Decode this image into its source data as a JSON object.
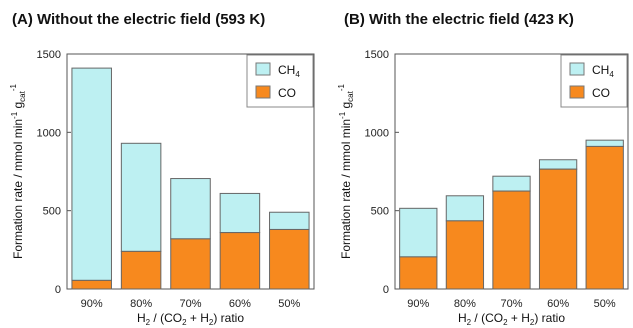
{
  "chart_data": [
    {
      "type": "bar",
      "stacked": true,
      "title": "(A) Without the electric field (593 K)",
      "categories": [
        "90%",
        "80%",
        "70%",
        "60%",
        "50%"
      ],
      "series": [
        {
          "name": "CO",
          "color": "#f7891e",
          "values": [
            55,
            240,
            320,
            360,
            380
          ]
        },
        {
          "name": "CH4",
          "color": "#bdf0f2",
          "values": [
            1355,
            690,
            385,
            250,
            110
          ]
        }
      ],
      "ylim": [
        0,
        1500
      ],
      "yticks": [
        "0",
        "500",
        "1000",
        "1500"
      ],
      "xlabel": "H2 / (CO2 + H2) ratio",
      "ylabel": "Formation rate / mmol min-1 gcat-1",
      "legend_position": "top-right"
    },
    {
      "type": "bar",
      "stacked": true,
      "title": "(B) With the electric field (423 K)",
      "categories": [
        "90%",
        "80%",
        "70%",
        "60%",
        "50%"
      ],
      "series": [
        {
          "name": "CO",
          "color": "#f7891e",
          "values": [
            205,
            435,
            625,
            765,
            910
          ]
        },
        {
          "name": "CH4",
          "color": "#bdf0f2",
          "values": [
            310,
            160,
            95,
            60,
            40
          ]
        }
      ],
      "ylim": [
        0,
        1500
      ],
      "yticks": [
        "0",
        "500",
        "1000",
        "1500"
      ],
      "xlabel": "H2 / (CO2 + H2) ratio",
      "ylabel": "Formation rate / mmol min-1 gcat-1",
      "legend_position": "top-right"
    }
  ],
  "text": {
    "legend_ch4": "CH",
    "legend_ch4_sub": "4",
    "legend_co": "CO",
    "xlabel": {
      "h": "H",
      "s2": "2",
      "mid": " / (CO",
      "s2b": "2",
      "plus": " + H",
      "s2c": "2",
      "end": ") ratio"
    },
    "ylabel": {
      "main": "Formation rate / mmol min",
      "sup1": "-1",
      "g": " g",
      "sub": "cat",
      "sup2": "-1"
    }
  }
}
